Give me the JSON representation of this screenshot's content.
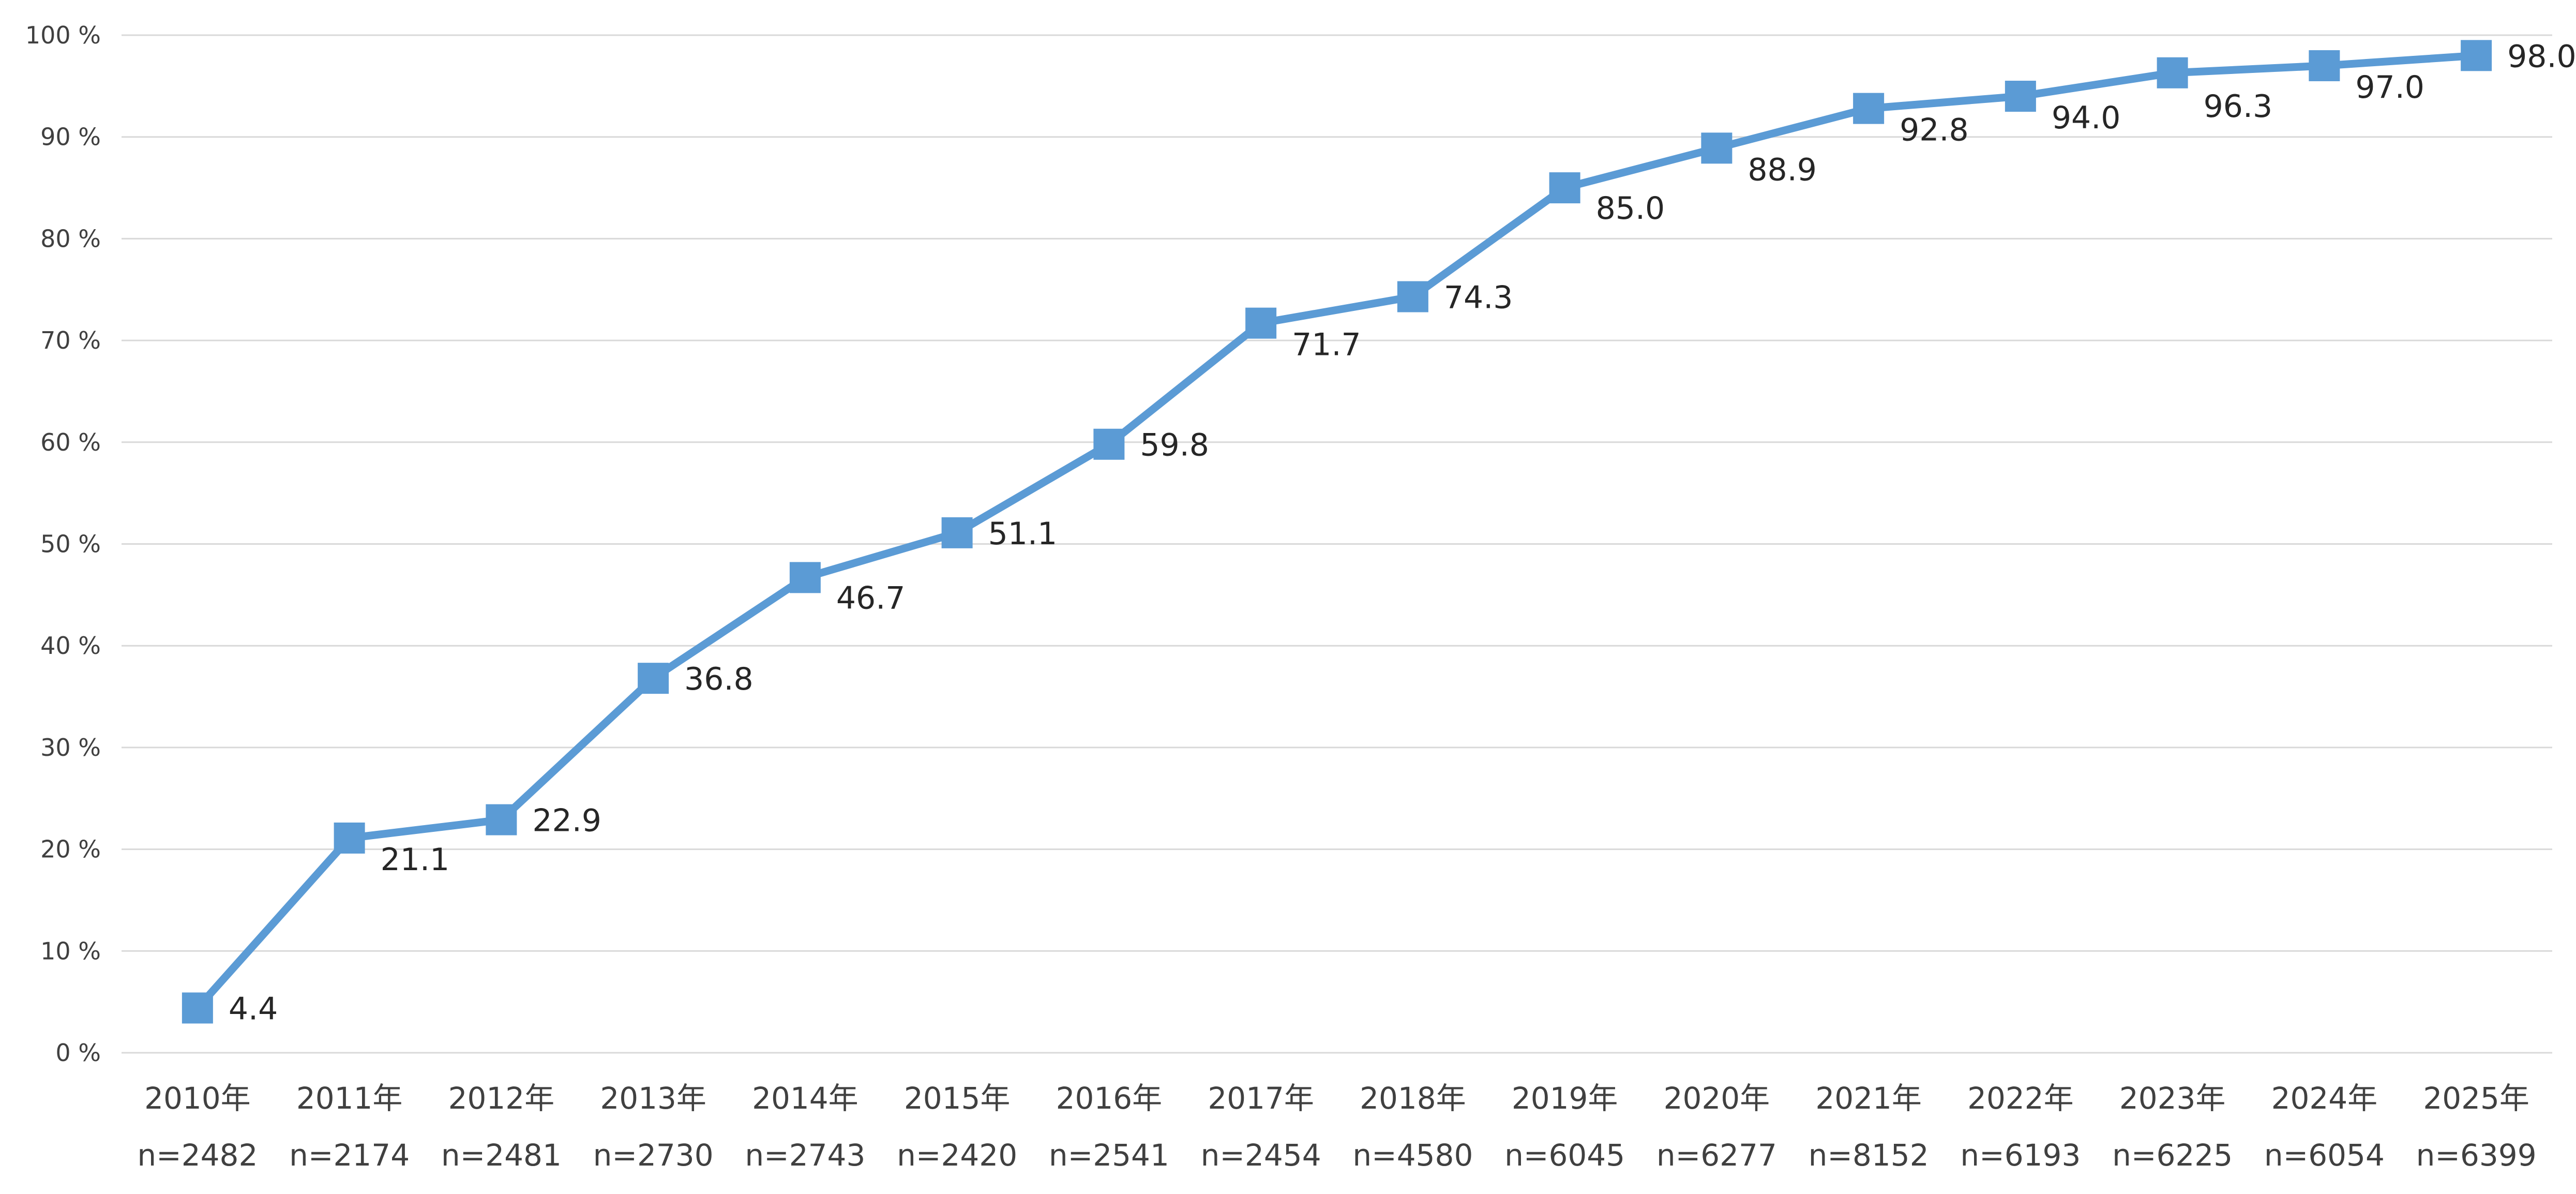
{
  "chart_data": {
    "type": "line",
    "title": "",
    "xlabel": "",
    "ylabel": "",
    "categories": [
      "2010年",
      "2011年",
      "2012年",
      "2013年",
      "2014年",
      "2015年",
      "2016年",
      "2017年",
      "2018年",
      "2019年",
      "2020年",
      "2021年",
      "2022年",
      "2023年",
      "2024年",
      "2025年"
    ],
    "sample_sizes": [
      "n=2482",
      "n=2174",
      "n=2481",
      "n=2730",
      "n=2743",
      "n=2420",
      "n=2541",
      "n=2454",
      "n=4580",
      "n=6045",
      "n=6277",
      "n=8152",
      "n=6193",
      "n=6225",
      "n=6054",
      "n=6399"
    ],
    "series": [
      {
        "values": [
          4.4,
          21.1,
          22.9,
          36.8,
          46.7,
          51.1,
          59.8,
          71.7,
          74.3,
          85.0,
          88.9,
          92.8,
          94.0,
          96.3,
          97.0,
          98.0
        ]
      }
    ],
    "data_labels": [
      "4.4",
      "21.1",
      "22.9",
      "36.8",
      "46.7",
      "51.1",
      "59.8",
      "71.7",
      "74.3",
      "85.0",
      "88.9",
      "92.8",
      "94.0",
      "96.3",
      "97.0",
      "98.0"
    ],
    "y_ticks": [
      "0 %",
      "10 %",
      "20 %",
      "30 %",
      "40 %",
      "50 %",
      "60 %",
      "70 %",
      "80 %",
      "90 %",
      "100 %"
    ],
    "ylim": [
      0,
      100
    ],
    "grid": true,
    "legend": "none",
    "series_color": "#5b9bd5",
    "marker": "square"
  }
}
